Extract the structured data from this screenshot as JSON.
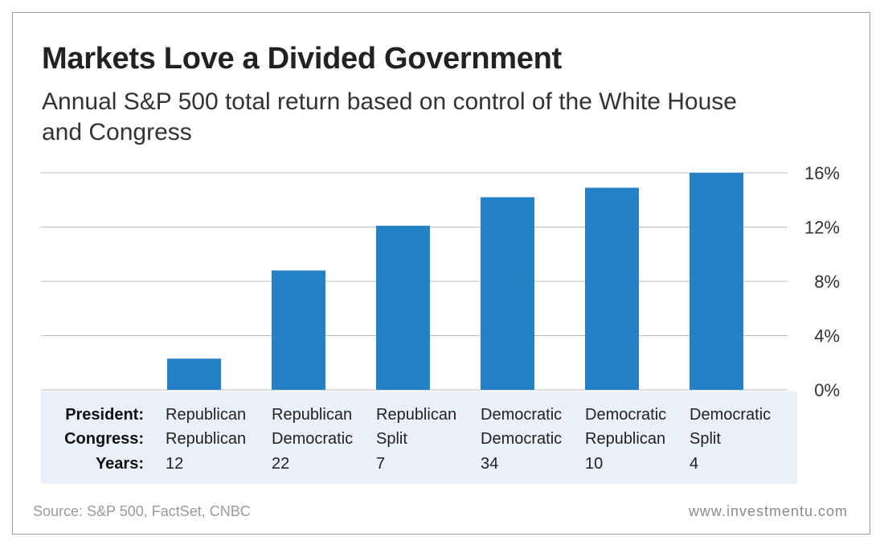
{
  "title": "Markets Love a Divided Government",
  "subtitle": "Annual S&P 500 total return based on control of the White House and Congress",
  "table": {
    "labels": {
      "president": "President:",
      "congress": "Congress:",
      "years": "Years:"
    },
    "columns": [
      {
        "president": "Republican",
        "congress": "Republican",
        "years": "12"
      },
      {
        "president": "Republican",
        "congress": "Democratic",
        "years": "22"
      },
      {
        "president": "Republican",
        "congress": "Split",
        "years": "7"
      },
      {
        "president": "Democratic",
        "congress": "Democratic",
        "years": "34"
      },
      {
        "president": "Democratic",
        "congress": "Republican",
        "years": "10"
      },
      {
        "president": "Democratic",
        "congress": "Split",
        "years": "4"
      }
    ]
  },
  "source": "Source: S&P 500, FactSet, CNBC",
  "site": "www.investmentu.com",
  "colors": {
    "bar": "#2481c6",
    "grid": "#bdbdbd",
    "panel": "#e9f0f7"
  },
  "chart_data": {
    "type": "bar",
    "categories": [
      "Republican / Republican",
      "Republican / Democratic",
      "Republican / Split",
      "Democratic / Democratic",
      "Democratic / Republican",
      "Democratic / Split"
    ],
    "values": [
      2.3,
      8.8,
      12.1,
      14.2,
      14.9,
      16.0
    ],
    "ylim": [
      0,
      16
    ],
    "yticks": [
      0,
      4,
      8,
      12,
      16
    ],
    "ytick_labels": [
      "0%",
      "4%",
      "8%",
      "12%",
      "16%"
    ],
    "yaxis_position": "right",
    "grid": true
  }
}
